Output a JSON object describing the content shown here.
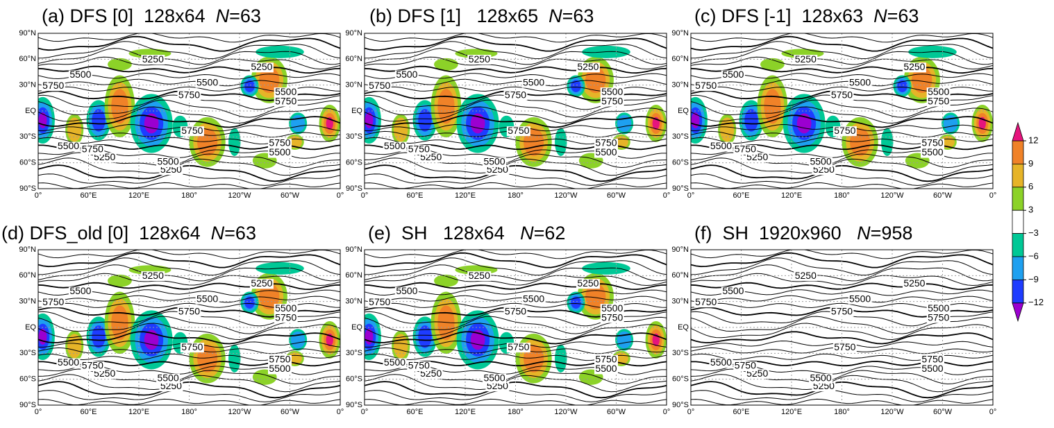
{
  "panels": [
    {
      "label": "(a) DFS [0]  128x64  ",
      "n_symbol": "N",
      "n_value": "=63"
    },
    {
      "label": "(b) DFS [1]   128x65  ",
      "n_symbol": "N",
      "n_value": "=63"
    },
    {
      "label": "(c) DFS [-1]  128x63  ",
      "n_symbol": "N",
      "n_value": "=63"
    },
    {
      "label": "(d) DFS_old [0]  128x64  ",
      "n_symbol": "N",
      "n_value": "=63"
    },
    {
      "label": "(e)  SH   128x64   ",
      "n_symbol": "N",
      "n_value": "=62"
    },
    {
      "label": "(f)  SH  1920x960   ",
      "n_symbol": "N",
      "n_value": "=958"
    }
  ],
  "lat_labels": [
    "90°N",
    "60°N",
    "30°N",
    "EQ",
    "30°S",
    "60°S",
    "90°S"
  ],
  "lon_labels": [
    "0°",
    "60°E",
    "120°E",
    "180°",
    "120°W",
    "60°W",
    "0°"
  ],
  "contour_labels": [
    "5250",
    "5500",
    "5750"
  ],
  "colorbar": {
    "ticks": [
      12,
      9,
      6,
      3,
      {
        "value": -3,
        "label": "−3"
      },
      {
        "value": -6,
        "label": "−6"
      },
      {
        "value": -9,
        "label": "−9"
      },
      {
        "value": -12,
        "label": "−12"
      }
    ]
  }
}
